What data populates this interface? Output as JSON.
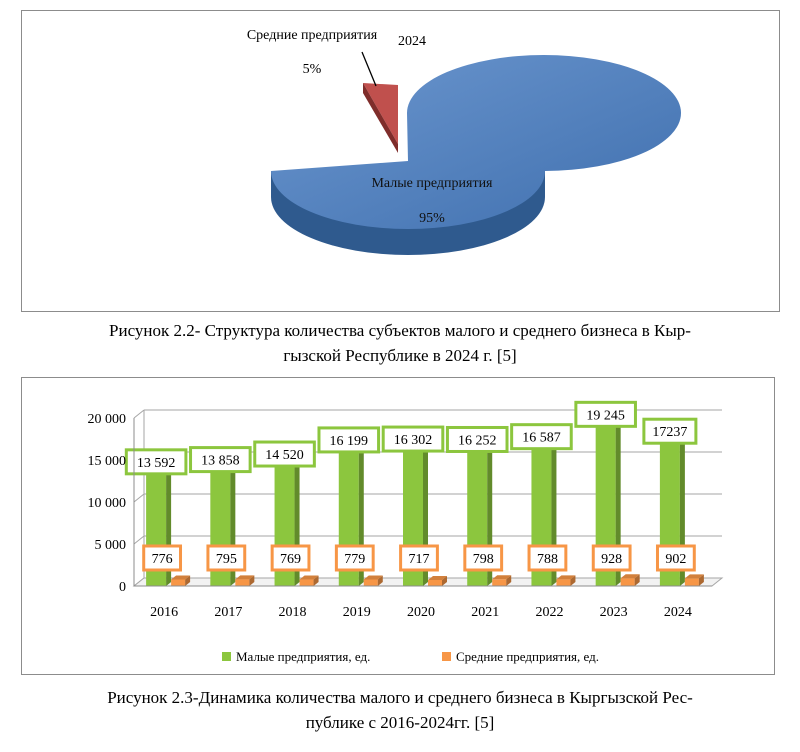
{
  "chart_data": [
    {
      "type": "pie",
      "title": "2024",
      "slices": [
        {
          "label": "Малые предприятия",
          "value": 95,
          "value_text": "95%",
          "color": "#4f81bd"
        },
        {
          "label": "Средние предприятия",
          "value": 5,
          "value_text": "5%",
          "color": "#c0504d"
        }
      ],
      "caption_line1": "Рисунок 2.2- Структура количества субъектов малого и среднего бизнеса в Кыр-",
      "caption_line2": "гызской Республике в 2024 г. [5]"
    },
    {
      "type": "bar",
      "categories": [
        "2016",
        "2017",
        "2018",
        "2019",
        "2020",
        "2021",
        "2022",
        "2023",
        "2024"
      ],
      "series": [
        {
          "name": "Малые предприятия, ед.",
          "color": "#8cc63e",
          "values": [
            13592,
            13858,
            14520,
            16199,
            16302,
            16252,
            16587,
            19245,
            17237
          ],
          "labels": [
            "13 592",
            "13 858",
            "14 520",
            "16 199",
            "16 302",
            "16 252",
            "16 587",
            "19 245",
            "17237"
          ]
        },
        {
          "name": "Средние предприятия, ед.",
          "color": "#f79646",
          "values": [
            776,
            795,
            769,
            779,
            717,
            798,
            788,
            928,
            902
          ],
          "labels": [
            "776",
            "795",
            "769",
            "779",
            "717",
            "798",
            "788",
            "928",
            "902"
          ]
        }
      ],
      "ylim": [
        0,
        20000
      ],
      "yticks": [
        "0",
        "5 000",
        "10 000",
        "15 000",
        "20 000"
      ],
      "grid": true,
      "legend": "bottom",
      "caption_line1": "Рисунок 2.3-Динамика количества малого и среднего бизнеса в Кыргызской Рес-",
      "caption_line2": "публике с 2016-2024гг. [5]"
    }
  ]
}
